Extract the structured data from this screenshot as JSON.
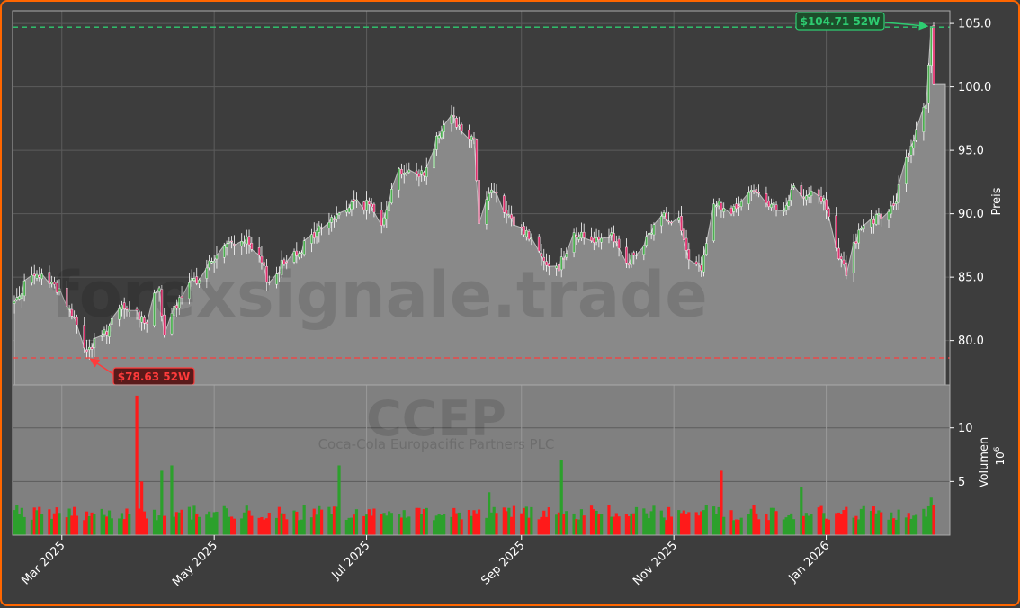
{
  "chart_data": {
    "type": "candlestick",
    "watermark": "forexsignale.trade",
    "ticker": "CCEP",
    "company": "Coca-Cola Europacific Partners PLC",
    "ylabel": "Preis",
    "volume_label": "Volumen",
    "volume_unit": "10^6",
    "ylim": [
      76.5,
      106.0
    ],
    "volume_ylim": [
      0,
      14
    ],
    "price_ticks": [
      80.0,
      85.0,
      90.0,
      95.0,
      100.0,
      105.0
    ],
    "price_tick_labels": [
      "80.0",
      "85.0",
      "90.0",
      "95.0",
      "100.0",
      "105.0"
    ],
    "volume_ticks": [
      5,
      10
    ],
    "volume_tick_labels": [
      "5",
      "10"
    ],
    "x_tick_labels": [
      "Mar 2025",
      "May 2025",
      "Jul 2025",
      "Sep 2025",
      "Nov 2025",
      "Jan 2026"
    ],
    "x_tick_dates": [
      "2025-03-01",
      "2025-05-01",
      "2025-07-01",
      "2025-09-01",
      "2025-11-01",
      "2026-01-01"
    ],
    "date_range": [
      "2025-02-10",
      "2026-02-13"
    ],
    "high_52w": {
      "value": 104.71,
      "label": "$104.71 52W",
      "date": "2026-02-12",
      "color": "#2ecc71"
    },
    "low_52w": {
      "value": 78.63,
      "label": "$78.63 52W",
      "date": "2025-03-11",
      "color": "#ff3b3b"
    },
    "close_anchors": [
      [
        "2025-02-10",
        83.0
      ],
      [
        "2025-02-14",
        84.5
      ],
      [
        "2025-02-21",
        85.2
      ],
      [
        "2025-02-28",
        84.0
      ],
      [
        "2025-03-05",
        82.0
      ],
      [
        "2025-03-11",
        79.2
      ],
      [
        "2025-03-18",
        80.5
      ],
      [
        "2025-03-25",
        82.5
      ],
      [
        "2025-04-01",
        82.0
      ],
      [
        "2025-04-04",
        81.5
      ],
      [
        "2025-04-09",
        84.5
      ],
      [
        "2025-04-11",
        80.0
      ],
      [
        "2025-04-15",
        82.5
      ],
      [
        "2025-04-22",
        84.5
      ],
      [
        "2025-04-29",
        86.0
      ],
      [
        "2025-05-06",
        87.5
      ],
      [
        "2025-05-13",
        88.0
      ],
      [
        "2025-05-20",
        86.0
      ],
      [
        "2025-05-23",
        84.5
      ],
      [
        "2025-05-30",
        86.5
      ],
      [
        "2025-06-06",
        87.5
      ],
      [
        "2025-06-13",
        89.0
      ],
      [
        "2025-06-20",
        90.0
      ],
      [
        "2025-06-27",
        91.0
      ],
      [
        "2025-07-03",
        90.5
      ],
      [
        "2025-07-07",
        89.5
      ],
      [
        "2025-07-14",
        93.5
      ],
      [
        "2025-07-21",
        93.0
      ],
      [
        "2025-07-25",
        93.5
      ],
      [
        "2025-07-30",
        96.5
      ],
      [
        "2025-08-04",
        98.0
      ],
      [
        "2025-08-08",
        96.5
      ],
      [
        "2025-08-13",
        96.0
      ],
      [
        "2025-08-15",
        89.5
      ],
      [
        "2025-08-20",
        92.0
      ],
      [
        "2025-08-27",
        89.5
      ],
      [
        "2025-09-03",
        88.5
      ],
      [
        "2025-09-10",
        86.5
      ],
      [
        "2025-09-15",
        85.5
      ],
      [
        "2025-09-22",
        88.5
      ],
      [
        "2025-09-29",
        88.0
      ],
      [
        "2025-10-06",
        88.5
      ],
      [
        "2025-10-13",
        86.0
      ],
      [
        "2025-10-20",
        87.5
      ],
      [
        "2025-10-27",
        90.0
      ],
      [
        "2025-11-03",
        89.5
      ],
      [
        "2025-11-07",
        86.0
      ],
      [
        "2025-11-12",
        85.5
      ],
      [
        "2025-11-17",
        91.0
      ],
      [
        "2025-11-24",
        90.0
      ],
      [
        "2025-12-01",
        91.5
      ],
      [
        "2025-12-05",
        92.0
      ],
      [
        "2025-12-10",
        90.5
      ],
      [
        "2025-12-15",
        90.0
      ],
      [
        "2025-12-19",
        92.0
      ],
      [
        "2025-12-26",
        91.5
      ],
      [
        "2025-12-31",
        91.0
      ],
      [
        "2026-01-06",
        86.5
      ],
      [
        "2026-01-09",
        85.5
      ],
      [
        "2026-01-14",
        88.5
      ],
      [
        "2026-01-21",
        89.5
      ],
      [
        "2026-01-28",
        90.5
      ],
      [
        "2026-02-02",
        94.0
      ],
      [
        "2026-02-06",
        96.5
      ],
      [
        "2026-02-10",
        99.0
      ],
      [
        "2026-02-12",
        104.71
      ],
      [
        "2026-02-13",
        100.0
      ]
    ],
    "volume_spikes": [
      [
        "2025-03-31",
        13.0,
        "down"
      ],
      [
        "2025-04-02",
        5.0,
        "down"
      ],
      [
        "2025-04-10",
        6.0,
        "up"
      ],
      [
        "2025-04-14",
        6.5,
        "up"
      ],
      [
        "2025-06-20",
        6.5,
        "up"
      ],
      [
        "2025-08-19",
        4.0,
        "up"
      ],
      [
        "2025-09-17",
        7.0,
        "up"
      ],
      [
        "2025-11-20",
        6.0,
        "down"
      ],
      [
        "2025-12-22",
        4.5,
        "up"
      ],
      [
        "2026-02-12",
        3.5,
        "up"
      ]
    ],
    "colors": {
      "up": "#2ca02c",
      "down": "#ff1a1a",
      "area": "#898989",
      "panel": "#808080",
      "background": "#3d3d3d",
      "grid": "#5c5c5c",
      "border": "#ff6600",
      "text": "#ffffff"
    }
  }
}
